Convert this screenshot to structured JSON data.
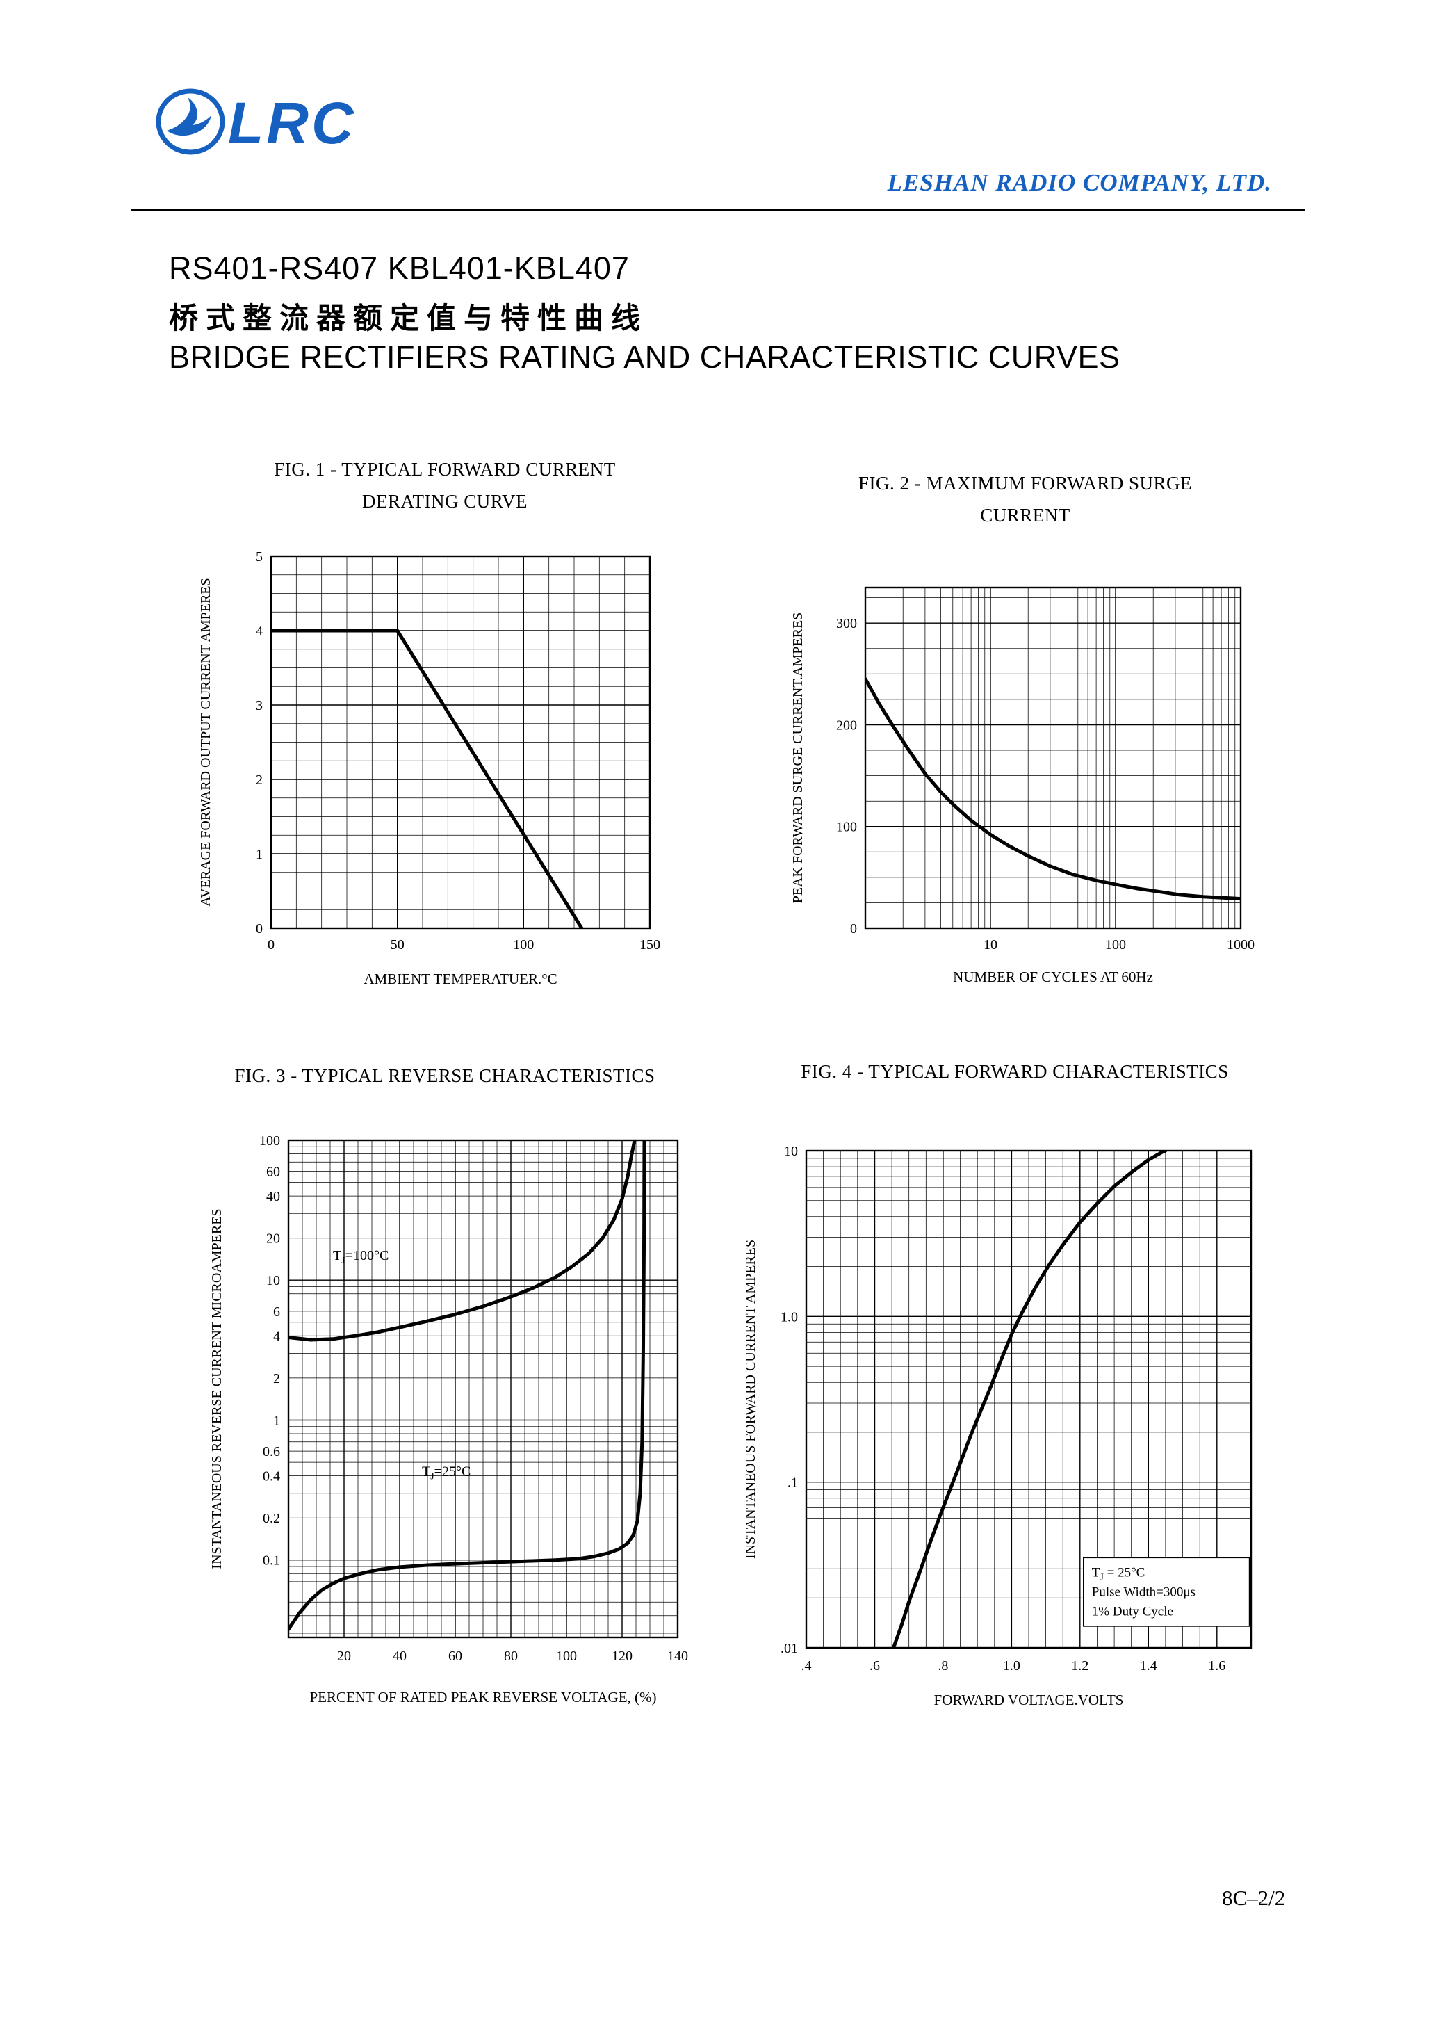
{
  "colors": {
    "brand_blue": "#1660c0"
  },
  "header": {
    "logo_text": "LRC",
    "company": "LESHAN RADIO COMPANY, LTD."
  },
  "title_block": {
    "part_numbers": "RS401-RS407 KBL401-KBL407",
    "chinese_title": "桥式整流器额定值与特性曲线",
    "english_title": "BRIDGE RECTIFIERS RATING AND CHARACTERISTIC CURVES"
  },
  "footer": {
    "page_ref": "8C–2/2"
  },
  "chart_data": [
    {
      "id": "fig1",
      "type": "line",
      "title_lines": [
        "FIG. 1 - TYPICAL FORWARD  CURRENT",
        "DERATING CURVE"
      ],
      "xlabel": "AMBIENT TEMPERATUER.°C",
      "ylabel": "AVERAGE FORWARD OUTPUT CURRENT AMPERES",
      "x": {
        "scale": "linear",
        "min": 0,
        "max": 150,
        "minor_step": 10,
        "ticks": [
          {
            "v": 0,
            "label": "0"
          },
          {
            "v": 50,
            "label": "50"
          },
          {
            "v": 100,
            "label": "100"
          },
          {
            "v": 150,
            "label": "150"
          }
        ]
      },
      "y": {
        "scale": "linear",
        "min": 0,
        "max": 5,
        "minor_step": 0.25,
        "ticks": [
          {
            "v": 0,
            "label": "0"
          },
          {
            "v": 1,
            "label": "1"
          },
          {
            "v": 2,
            "label": "2"
          },
          {
            "v": 3,
            "label": "3"
          },
          {
            "v": 4,
            "label": "4"
          },
          {
            "v": 5,
            "label": "5"
          }
        ]
      },
      "series": [
        {
          "name": "forward-current-derating",
          "points": [
            [
              0,
              4
            ],
            [
              50,
              4
            ],
            [
              123,
              0
            ]
          ]
        }
      ]
    },
    {
      "id": "fig2",
      "type": "line",
      "title_lines": [
        "FIG. 2 - MAXIMUM FORWARD SURGE",
        "CURRENT"
      ],
      "xlabel": "NUMBER OF CYCLES AT 60Hz",
      "ylabel": "PEAK FORWARD SURGE CURRENT.AMPERES",
      "x": {
        "scale": "log",
        "min": 1,
        "max": 1000,
        "ticks": [
          {
            "v": 10,
            "label": "10"
          },
          {
            "v": 100,
            "label": "100"
          },
          {
            "v": 1000,
            "label": "1000"
          }
        ]
      },
      "y": {
        "scale": "linear",
        "min": 0,
        "max": 335,
        "minor_step": 25,
        "ticks": [
          {
            "v": 0,
            "label": "0"
          },
          {
            "v": 100,
            "label": "100"
          },
          {
            "v": 200,
            "label": "200"
          },
          {
            "v": 300,
            "label": "300"
          }
        ]
      },
      "series": [
        {
          "name": "max-forward-surge-current",
          "points": [
            [
              1,
              245
            ],
            [
              1.3,
              220
            ],
            [
              1.7,
              197
            ],
            [
              2.2,
              176
            ],
            [
              3,
              152
            ],
            [
              4,
              134
            ],
            [
              5,
              122
            ],
            [
              7,
              106
            ],
            [
              10,
              92
            ],
            [
              14,
              81
            ],
            [
              20,
              71
            ],
            [
              30,
              61
            ],
            [
              45,
              53
            ],
            [
              70,
              47
            ],
            [
              100,
              43
            ],
            [
              150,
              39
            ],
            [
              220,
              36
            ],
            [
              320,
              33
            ],
            [
              500,
              31
            ],
            [
              700,
              30
            ],
            [
              1000,
              29
            ]
          ]
        }
      ]
    },
    {
      "id": "fig3",
      "type": "line",
      "title_lines": [
        "FIG. 3 - TYPICAL REVERSE CHARACTERISTICS"
      ],
      "xlabel": "PERCENT OF RATED PEAK REVERSE VOLTAGE, (%)",
      "ylabel": "INSTANTANEOUS REVERSE CURRENT MICROAMPERES",
      "x": {
        "scale": "linear",
        "min": 0,
        "max": 140,
        "minor_step": 5,
        "ticks": [
          {
            "v": 20,
            "label": "20"
          },
          {
            "v": 40,
            "label": "40"
          },
          {
            "v": 60,
            "label": "60"
          },
          {
            "v": 80,
            "label": "80"
          },
          {
            "v": 100,
            "label": "100"
          },
          {
            "v": 120,
            "label": "120"
          },
          {
            "v": 140,
            "label": "140"
          }
        ]
      },
      "y": {
        "scale": "log",
        "min": 0.028,
        "max": 100,
        "ticks": [
          {
            "v": 100,
            "label": "100"
          },
          {
            "v": 60,
            "label": "60"
          },
          {
            "v": 40,
            "label": "40"
          },
          {
            "v": 20,
            "label": "20"
          },
          {
            "v": 10,
            "label": "10"
          },
          {
            "v": 6,
            "label": "6"
          },
          {
            "v": 4,
            "label": "4"
          },
          {
            "v": 2,
            "label": "2"
          },
          {
            "v": 1,
            "label": "1"
          },
          {
            "v": 0.6,
            "label": "0.6"
          },
          {
            "v": 0.4,
            "label": "0.4"
          },
          {
            "v": 0.2,
            "label": "0.2"
          },
          {
            "v": 0.1,
            "label": "0.1"
          }
        ]
      },
      "series": [
        {
          "name": "reverse-current-Tj-100C",
          "points": [
            [
              0,
              3.9
            ],
            [
              8,
              3.75
            ],
            [
              16,
              3.8
            ],
            [
              24,
              4.0
            ],
            [
              32,
              4.25
            ],
            [
              40,
              4.6
            ],
            [
              50,
              5.1
            ],
            [
              60,
              5.7
            ],
            [
              70,
              6.5
            ],
            [
              80,
              7.6
            ],
            [
              88,
              8.8
            ],
            [
              96,
              10.5
            ],
            [
              102,
              12.5
            ],
            [
              108,
              15.5
            ],
            [
              113,
              20
            ],
            [
              117,
              27
            ],
            [
              120,
              38
            ],
            [
              122,
              55
            ],
            [
              123.5,
              80
            ],
            [
              124.5,
              100
            ]
          ]
        },
        {
          "name": "reverse-current-Tj-25C",
          "points": [
            [
              0,
              0.032
            ],
            [
              4,
              0.042
            ],
            [
              8,
              0.052
            ],
            [
              12,
              0.061
            ],
            [
              16,
              0.068
            ],
            [
              20,
              0.074
            ],
            [
              26,
              0.08
            ],
            [
              32,
              0.085
            ],
            [
              40,
              0.089
            ],
            [
              50,
              0.092
            ],
            [
              60,
              0.094
            ],
            [
              72,
              0.096
            ],
            [
              84,
              0.098
            ],
            [
              96,
              0.1
            ],
            [
              104,
              0.102
            ],
            [
              110,
              0.106
            ],
            [
              115,
              0.112
            ],
            [
              119,
              0.12
            ],
            [
              122,
              0.132
            ],
            [
              124,
              0.15
            ],
            [
              125.5,
              0.19
            ],
            [
              126.5,
              0.3
            ],
            [
              127.2,
              0.7
            ],
            [
              127.6,
              3
            ],
            [
              127.9,
              20
            ],
            [
              128,
              100
            ]
          ]
        }
      ],
      "annotations": [
        {
          "x": 16,
          "y": 14,
          "parts": [
            {
              "t": "T"
            },
            {
              "t": "J",
              "sub": true
            },
            {
              "t": "=100°C"
            }
          ]
        },
        {
          "x": 48,
          "y": 0.4,
          "parts": [
            {
              "t": "T"
            },
            {
              "t": "J",
              "sub": true
            },
            {
              "t": "=25°C"
            }
          ]
        }
      ]
    },
    {
      "id": "fig4",
      "type": "line",
      "title_lines": [
        "FIG. 4 - TYPICAL FORWARD CHARACTERISTICS"
      ],
      "xlabel": "FORWARD VOLTAGE.VOLTS",
      "ylabel": "INSTANTANEOUS FORWARD CURRENT AMPERES",
      "x": {
        "scale": "linear",
        "min": 0.4,
        "max": 1.7,
        "minor_step": 0.05,
        "ticks": [
          {
            "v": 0.4,
            "label": ".4"
          },
          {
            "v": 0.6,
            "label": ".6"
          },
          {
            "v": 0.8,
            "label": ".8"
          },
          {
            "v": 1.0,
            "label": "1.0"
          },
          {
            "v": 1.2,
            "label": "1.2"
          },
          {
            "v": 1.4,
            "label": "1.4"
          },
          {
            "v": 1.6,
            "label": "1.6"
          }
        ]
      },
      "y": {
        "scale": "log",
        "min": 0.01,
        "max": 10,
        "ticks": [
          {
            "v": 10,
            "label": "10"
          },
          {
            "v": 1,
            "label": "1.0"
          },
          {
            "v": 0.1,
            "label": ".1"
          },
          {
            "v": 0.01,
            "label": ".01"
          }
        ]
      },
      "series": [
        {
          "name": "forward-voltage-current",
          "points": [
            [
              0.655,
              0.01
            ],
            [
              0.68,
              0.014
            ],
            [
              0.7,
              0.019
            ],
            [
              0.73,
              0.028
            ],
            [
              0.76,
              0.042
            ],
            [
              0.79,
              0.062
            ],
            [
              0.82,
              0.09
            ],
            [
              0.85,
              0.13
            ],
            [
              0.88,
              0.19
            ],
            [
              0.91,
              0.27
            ],
            [
              0.94,
              0.38
            ],
            [
              0.97,
              0.55
            ],
            [
              1.0,
              0.78
            ],
            [
              1.03,
              1.05
            ],
            [
              1.07,
              1.5
            ],
            [
              1.11,
              2.05
            ],
            [
              1.15,
              2.7
            ],
            [
              1.2,
              3.7
            ],
            [
              1.25,
              4.8
            ],
            [
              1.3,
              6.1
            ],
            [
              1.35,
              7.4
            ],
            [
              1.4,
              8.8
            ],
            [
              1.44,
              9.8
            ],
            [
              1.45,
              10
            ]
          ]
        }
      ],
      "annotation_box": {
        "x0": 1.21,
        "x1": 1.695,
        "y0": 0.035,
        "y1": 0.0135,
        "lines": [
          [
            {
              "t": "T"
            },
            {
              "t": "J",
              "sub": true
            },
            {
              "t": " = 25°C"
            }
          ],
          [
            {
              "t": "Pulse Width=300μs"
            }
          ],
          [
            {
              "t": "1% Duty Cycle"
            }
          ]
        ]
      }
    }
  ]
}
